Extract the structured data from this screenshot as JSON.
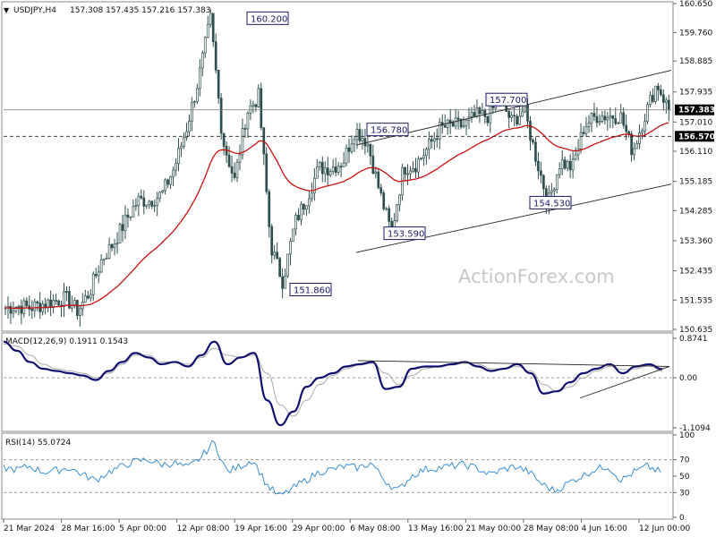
{
  "header": {
    "symbol_line": "USDJPY,H4",
    "ohlc": "157.308 157.435 157.216 157.383",
    "marker": "▼"
  },
  "watermark": "ActionForex.com",
  "colors": {
    "candle": "#2f4f4f",
    "ma": "#cc1111",
    "macd": "#101070",
    "signal": "#a9a9a9",
    "rsi": "#3a8fd6",
    "trendline": "#222222",
    "price_tag_bg": "#000000"
  },
  "price_tags": {
    "current": "157.383",
    "level": "156.570"
  },
  "macd_header": "MACD(12,26,9) 0.1911 0.1543",
  "rsi_header": "RSI(14) 55.0724",
  "chart_data": [
    {
      "type": "candlestick",
      "y_ticks": [
        "160.650",
        "159.760",
        "158.885",
        "157.935",
        "157.010",
        "156.110",
        "155.185",
        "154.285",
        "153.360",
        "152.435",
        "151.535",
        "150.635"
      ],
      "x_ticks": [
        "21 Mar 2024",
        "28 Mar 16:00",
        "5 Apr 00:00",
        "12 Apr 08:00",
        "19 Apr 16:00",
        "29 Apr 00:00",
        "6 May 08:00",
        "13 May 16:00",
        "21 May 00:00",
        "28 May 08:00",
        "4 Jun 16:00",
        "12 Jun 00:00"
      ],
      "ylim": [
        150.635,
        160.65
      ],
      "close_path": [
        [
          "21 Mar 2024",
          151.3
        ],
        [
          "24 Mar",
          151.35
        ],
        [
          "26 Mar",
          151.3
        ],
        [
          "28 Mar 16:00",
          151.4
        ],
        [
          "1 Apr",
          151.5
        ],
        [
          "4 Apr",
          151.6
        ],
        [
          "5 Apr 00:00",
          151.2
        ],
        [
          "8 Apr",
          151.8
        ],
        [
          "10 Apr",
          152.8
        ],
        [
          "12 Apr 08:00",
          153.3
        ],
        [
          "15 Apr",
          154.0
        ],
        [
          "17 Apr",
          154.6
        ],
        [
          "19 Apr 16:00",
          154.6
        ],
        [
          "23 Apr",
          154.8
        ],
        [
          "25 Apr",
          155.6
        ],
        [
          "26 Apr",
          156.8
        ],
        [
          "28 Apr",
          158.3
        ],
        [
          "29 Apr 00:00",
          160.2
        ],
        [
          "29 Apr 04:00",
          156.5
        ],
        [
          "29 Apr 12:00",
          155.2
        ],
        [
          "30 Apr",
          157.3
        ],
        [
          "1 May",
          157.8
        ],
        [
          "2 May",
          153.2
        ],
        [
          "3 May",
          152.1
        ],
        [
          "6 May 08:00",
          153.9
        ],
        [
          "7 May",
          154.7
        ],
        [
          "8 May",
          155.6
        ],
        [
          "9 May",
          155.6
        ],
        [
          "10 May",
          155.8
        ],
        [
          "13 May 16:00",
          156.78
        ],
        [
          "14 May",
          156.4
        ],
        [
          "15 May",
          154.9
        ],
        [
          "16 May",
          153.59
        ],
        [
          "17 May",
          155.6
        ],
        [
          "20 May",
          155.7
        ],
        [
          "21 May 00:00",
          156.2
        ],
        [
          "22 May",
          156.8
        ],
        [
          "23 May",
          156.9
        ],
        [
          "24 May",
          156.9
        ],
        [
          "27 May",
          157.2
        ],
        [
          "28 May 08:00",
          157.2
        ],
        [
          "29 May",
          157.7
        ],
        [
          "30 May",
          157.0
        ],
        [
          "31 May",
          157.4
        ],
        [
          "3 Jun",
          155.9
        ],
        [
          "4 Jun 16:00",
          154.53
        ],
        [
          "5 Jun",
          155.8
        ],
        [
          "6 Jun",
          155.6
        ],
        [
          "7 Jun",
          156.9
        ],
        [
          "10 Jun",
          157.2
        ],
        [
          "11 Jun",
          157.2
        ],
        [
          "12 Jun 00:00",
          157.2
        ],
        [
          "12 Jun 08:00",
          156.1
        ],
        [
          "13 Jun",
          157.2
        ],
        [
          "14 Jun",
          158.2
        ],
        [
          "14 Jun 20:00",
          157.383
        ]
      ],
      "annotations": [
        "160.200",
        "156.780",
        "157.700",
        "153.590",
        "154.530",
        "151.860"
      ],
      "horizontal_levels": [
        157.383,
        156.57
      ],
      "channel": {
        "upper": [
          [
            156.3,
            "6 May 08:00"
          ],
          [
            158.6,
            "14 Jun 20:00"
          ]
        ],
        "lower": [
          [
            153.0,
            "6 May 08:00"
          ],
          [
            155.1,
            "14 Jun 20:00"
          ]
        ]
      },
      "grid": false
    },
    {
      "type": "line",
      "title": "MACD(12,26,9) 0.1911 0.1543",
      "y_ticks": [
        "0.8741",
        "0.00",
        "-1.1094"
      ],
      "ylim": [
        -1.1094,
        0.8741
      ],
      "series": [
        {
          "name": "MACD",
          "values": [
            0.8,
            0.6,
            0.35,
            0.2,
            0.15,
            0.1,
            0.05,
            -0.05,
            0.15,
            0.35,
            0.55,
            0.45,
            0.3,
            0.35,
            0.25,
            0.5,
            0.8,
            0.3,
            0.45,
            0.55,
            -0.5,
            -1.05,
            -0.75,
            -0.2,
            0.0,
            0.1,
            0.25,
            0.3,
            0.35,
            -0.25,
            -0.2,
            0.2,
            0.25,
            0.25,
            0.3,
            0.35,
            0.25,
            0.15,
            0.2,
            0.3,
            0.1,
            -0.35,
            -0.3,
            -0.1,
            0.1,
            0.2,
            0.3,
            0.1,
            0.25,
            0.3,
            0.19
          ]
        },
        {
          "name": "Signal",
          "values": [
            0.75,
            0.7,
            0.5,
            0.3,
            0.2,
            0.15,
            0.1,
            0.0,
            0.1,
            0.3,
            0.5,
            0.5,
            0.35,
            0.35,
            0.3,
            0.45,
            0.65,
            0.5,
            0.45,
            0.5,
            0.1,
            -0.6,
            -0.85,
            -0.5,
            -0.15,
            0.05,
            0.2,
            0.28,
            0.32,
            0.1,
            -0.15,
            0.05,
            0.2,
            0.25,
            0.28,
            0.32,
            0.3,
            0.2,
            0.2,
            0.25,
            0.15,
            -0.15,
            -0.3,
            -0.2,
            0.0,
            0.15,
            0.25,
            0.18,
            0.2,
            0.27,
            0.15
          ]
        }
      ]
    },
    {
      "type": "line",
      "title": "RSI(14) 55.0724",
      "y_ticks": [
        "100",
        "70",
        "50",
        "30",
        "0"
      ],
      "ylim": [
        0,
        100
      ],
      "series": [
        {
          "name": "RSI",
          "values": [
            60,
            58,
            62,
            55,
            57,
            60,
            52,
            45,
            55,
            62,
            68,
            70,
            64,
            66,
            60,
            72,
            92,
            55,
            62,
            70,
            40,
            25,
            35,
            45,
            55,
            58,
            62,
            60,
            66,
            45,
            32,
            50,
            58,
            60,
            62,
            64,
            60,
            52,
            58,
            62,
            55,
            40,
            32,
            42,
            50,
            58,
            62,
            45,
            55,
            62,
            55
          ]
        }
      ]
    }
  ]
}
